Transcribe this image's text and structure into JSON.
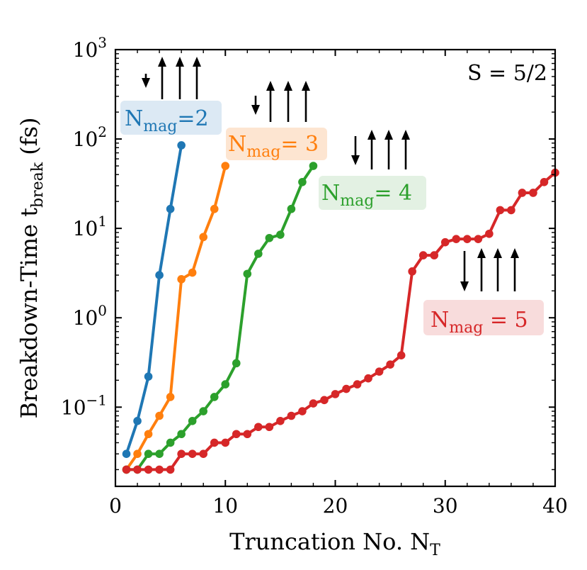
{
  "chart_data": {
    "type": "line",
    "xlabel_main": "Truncation No. N",
    "xlabel_sub": "T",
    "ylabel_main": "Breakdown-Time t",
    "ylabel_sub": "break",
    "ylabel_unit": " (fs)",
    "yscale": "log",
    "xlim": [
      0,
      40
    ],
    "ylim": [
      0.013,
      1000
    ],
    "x_ticks": [
      {
        "value": 0,
        "label": "0"
      },
      {
        "value": 10,
        "label": "10"
      },
      {
        "value": 20,
        "label": "20"
      },
      {
        "value": 30,
        "label": "30"
      },
      {
        "value": 40,
        "label": "40"
      }
    ],
    "y_ticks": [
      {
        "value": 0.1,
        "base": "10",
        "exp": "−1"
      },
      {
        "value": 1,
        "base": "10",
        "exp": "0"
      },
      {
        "value": 10,
        "base": "10",
        "exp": "1"
      },
      {
        "value": 100,
        "base": "10",
        "exp": "2"
      },
      {
        "value": 1000,
        "base": "10",
        "exp": "3"
      }
    ],
    "spin_label": "S = 5/2",
    "series": [
      {
        "name": "N_mag = 2",
        "color": "#1f77b4",
        "label_main": "N",
        "label_sub": "mag",
        "label_rest": "=2",
        "label_bg": "#dce9f4",
        "arrows": [
          false,
          true,
          true,
          true
        ],
        "x": [
          1,
          2,
          3,
          4,
          5,
          6
        ],
        "values": [
          0.03,
          0.07,
          0.22,
          3.0,
          16.5,
          85
        ]
      },
      {
        "name": "N_mag = 3",
        "color": "#ff7f0e",
        "label_main": "N",
        "label_sub": "mag",
        "label_rest": "= 3",
        "label_bg": "#fde5d1",
        "arrows": [
          false,
          true,
          true,
          true
        ],
        "x": [
          1,
          2,
          3,
          4,
          5,
          6,
          7,
          8,
          9,
          10
        ],
        "values": [
          0.02,
          0.03,
          0.05,
          0.08,
          0.13,
          2.7,
          3.2,
          8.0,
          16.5,
          50
        ]
      },
      {
        "name": "N_mag = 4",
        "color": "#2ca02c",
        "label_main": "N",
        "label_sub": "mag",
        "label_rest": "= 4",
        "label_bg": "#e3f1e3",
        "arrows": [
          false,
          true,
          true,
          true
        ],
        "x": [
          1,
          2,
          3,
          4,
          5,
          6,
          7,
          8,
          9,
          10,
          11,
          12,
          13,
          14,
          15,
          16,
          17,
          18
        ],
        "values": [
          0.02,
          0.02,
          0.03,
          0.03,
          0.04,
          0.05,
          0.07,
          0.09,
          0.13,
          0.18,
          0.31,
          3.1,
          5.2,
          7.8,
          8.5,
          16.5,
          33,
          50
        ]
      },
      {
        "name": "N_mag = 5",
        "color": "#d62728",
        "label_main": "N",
        "label_sub": "mag",
        "label_rest": " = 5",
        "label_bg": "#f8dcdc",
        "arrows": [
          false,
          true,
          true,
          true
        ],
        "x": [
          1,
          2,
          3,
          4,
          5,
          6,
          7,
          8,
          9,
          10,
          11,
          12,
          13,
          14,
          15,
          16,
          17,
          18,
          19,
          20,
          21,
          22,
          23,
          24,
          25,
          26,
          27,
          28,
          29,
          30,
          31,
          32,
          33,
          34,
          35,
          36,
          37,
          38,
          39,
          40
        ],
        "values": [
          0.02,
          0.02,
          0.02,
          0.02,
          0.02,
          0.03,
          0.03,
          0.03,
          0.04,
          0.04,
          0.05,
          0.05,
          0.06,
          0.06,
          0.07,
          0.08,
          0.09,
          0.11,
          0.12,
          0.14,
          0.16,
          0.18,
          0.21,
          0.25,
          0.3,
          0.38,
          3.3,
          5.0,
          5.0,
          7.0,
          7.6,
          7.6,
          7.6,
          8.7,
          16,
          16,
          25,
          25,
          33,
          42
        ]
      }
    ]
  }
}
